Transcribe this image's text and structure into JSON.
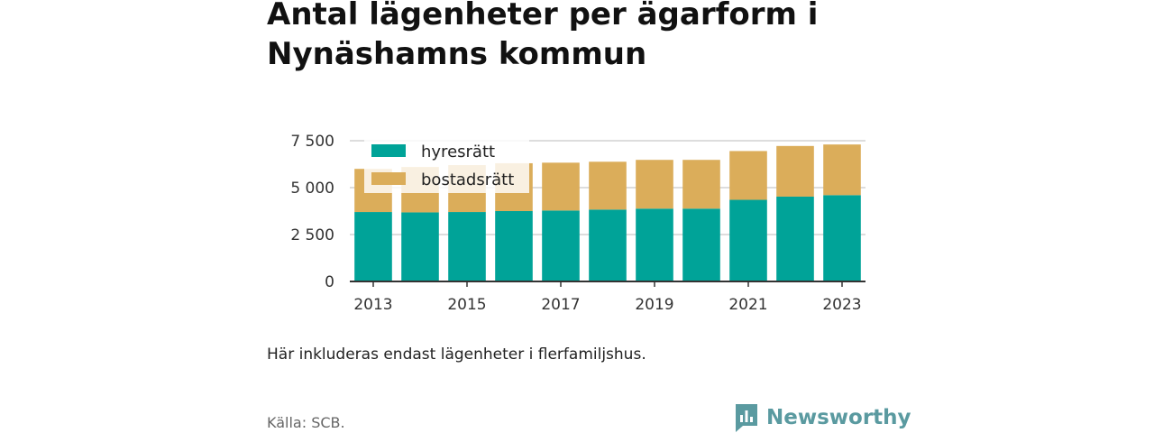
{
  "title": "Antal lägenheter per ägarform i Nynäshamns kommun",
  "note": "Här inkluderas endast lägenheter i flerfamiljshus.",
  "source": "Källa: SCB.",
  "brand": {
    "name": "Newsworthy",
    "color": "#5a9aa0",
    "icon": "newsworthy-logo-icon"
  },
  "colors": {
    "hyresratt": "#00a398",
    "bostadsratt": "#dbad5a",
    "grid": "#dddddd",
    "axis": "#333333"
  },
  "chart_data": {
    "type": "bar",
    "stacked": true,
    "categories": [
      "2013",
      "2014",
      "2015",
      "2016",
      "2017",
      "2018",
      "2019",
      "2020",
      "2021",
      "2022",
      "2023"
    ],
    "x_tick_labels": [
      "2013",
      "2015",
      "2017",
      "2019",
      "2021",
      "2023"
    ],
    "series": [
      {
        "name": "hyresrätt",
        "values": [
          3700,
          3680,
          3700,
          3750,
          3780,
          3830,
          3880,
          3880,
          4350,
          4520,
          4600
        ]
      },
      {
        "name": "bostadsrätt",
        "values": [
          2300,
          2420,
          2500,
          2550,
          2550,
          2550,
          2600,
          2600,
          2600,
          2700,
          2700
        ]
      }
    ],
    "ylim": [
      0,
      7500
    ],
    "y_ticks": [
      0,
      2500,
      5000,
      7500
    ],
    "y_tick_labels": [
      "0",
      "2 500",
      "5 000",
      "7 500"
    ],
    "xlabel": "",
    "ylabel": "",
    "grid": true,
    "legend_position": "top-left"
  }
}
